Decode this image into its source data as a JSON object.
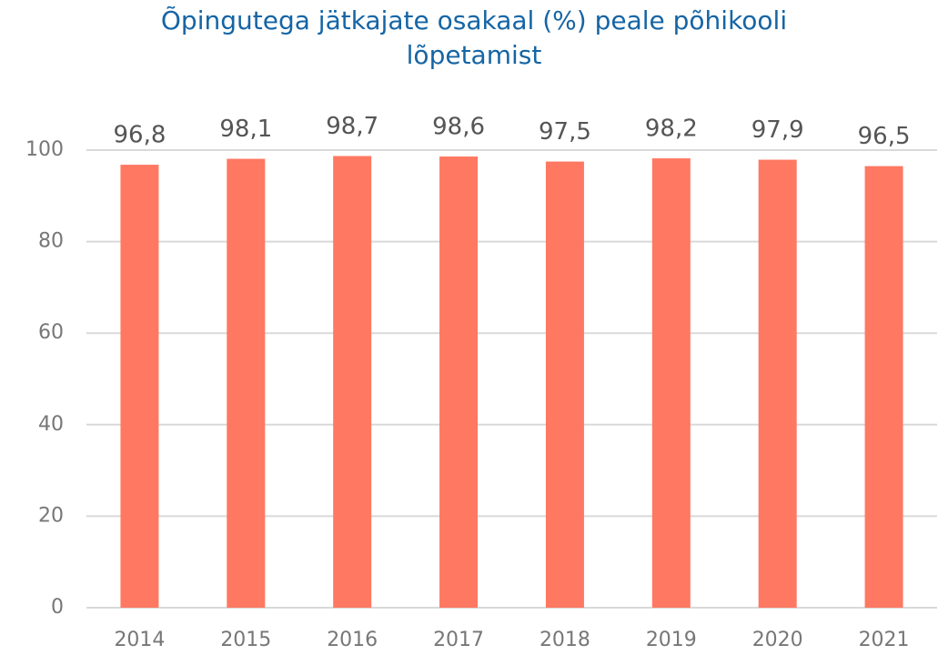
{
  "chart_data": {
    "type": "bar",
    "title": "Õpingutega jätkajate osakaal (%) peale põhikooli lõpetamist",
    "categories": [
      "2014",
      "2015",
      "2016",
      "2017",
      "2018",
      "2019",
      "2020",
      "2021"
    ],
    "values": [
      96.8,
      98.1,
      98.7,
      98.6,
      97.5,
      98.2,
      97.9,
      96.5
    ],
    "value_labels": [
      "96,8",
      "98,1",
      "98,7",
      "98,6",
      "97,5",
      "98,2",
      "97,9",
      "96,5"
    ],
    "color": "#ff7862",
    "ylim": [
      0,
      100
    ],
    "yticks": [
      0,
      20,
      40,
      60,
      80,
      100
    ],
    "grid": true
  }
}
